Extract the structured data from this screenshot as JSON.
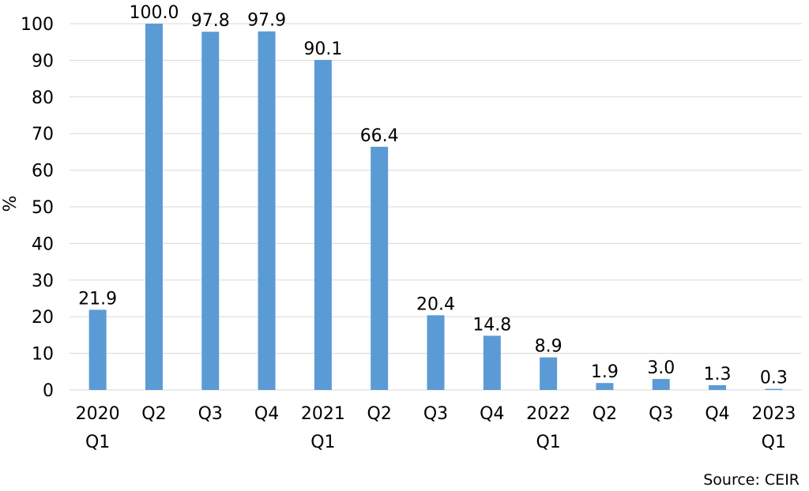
{
  "chart_data": {
    "type": "bar",
    "categories": [
      [
        "2020",
        "Q1"
      ],
      [
        "Q2"
      ],
      [
        "Q3"
      ],
      [
        "Q4"
      ],
      [
        "2021",
        "Q1"
      ],
      [
        "Q2"
      ],
      [
        "Q3"
      ],
      [
        "Q4"
      ],
      [
        "2022",
        "Q1"
      ],
      [
        "Q2"
      ],
      [
        "Q3"
      ],
      [
        "Q4"
      ],
      [
        "2023",
        "Q1"
      ]
    ],
    "values": [
      21.9,
      100.0,
      97.8,
      97.9,
      90.1,
      66.4,
      20.4,
      14.8,
      8.9,
      1.9,
      3.0,
      1.3,
      0.3
    ],
    "data_labels": [
      "21.9",
      "100.0",
      "97.8",
      "97.9",
      "90.1",
      "66.4",
      "20.4",
      "14.8",
      "8.9",
      "1.9",
      "3.0",
      "1.3",
      "0.3"
    ],
    "title": "",
    "xlabel": "",
    "ylabel": "%",
    "ylim": [
      0,
      100
    ],
    "yticks": [
      0,
      10,
      20,
      30,
      40,
      50,
      60,
      70,
      80,
      90,
      100
    ],
    "grid": true,
    "legend": "none",
    "bar_color": "#5b9bd5",
    "source": "Source: CEIR"
  }
}
